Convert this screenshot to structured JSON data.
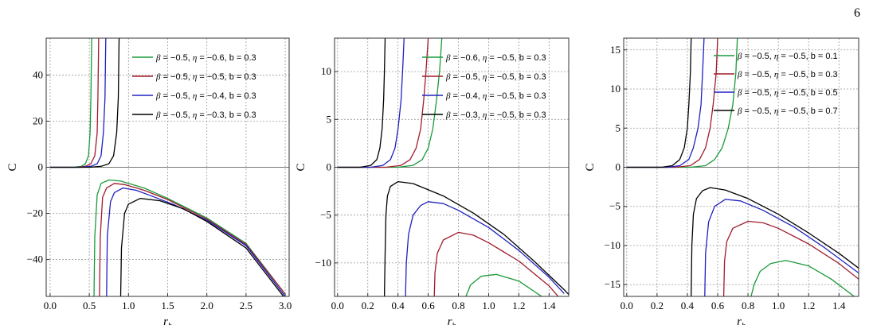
{
  "page_number": "6",
  "chart_data": [
    {
      "type": "line",
      "xlabel": "r_h",
      "ylabel": "C",
      "xlim": [
        -0.05,
        3.05
      ],
      "ylim": [
        -56,
        56
      ],
      "xticks": [
        0.0,
        0.5,
        1.0,
        1.5,
        2.0,
        2.5,
        3.0
      ],
      "xtick_labels": [
        "0.0",
        "0.5",
        "1.0",
        "1.5",
        "2.0",
        "2.5",
        "3.0"
      ],
      "yticks": [
        -40,
        -20,
        0,
        20,
        40
      ],
      "ytick_labels": [
        "−40",
        "−20",
        "0",
        "20",
        "40"
      ],
      "grid": true,
      "legend_position": "top-right",
      "series": [
        {
          "name": "β = −0.5, η = −0.6, b = 0.3",
          "color": "#1a9a3a",
          "upper": [
            [
              0,
              0
            ],
            [
              0.3,
              0
            ],
            [
              0.4,
              0.4
            ],
            [
              0.45,
              1.5
            ],
            [
              0.49,
              5
            ],
            [
              0.51,
              15
            ],
            [
              0.52,
              30
            ],
            [
              0.53,
              56
            ]
          ],
          "lower": [
            [
              0.56,
              -56
            ],
            [
              0.57,
              -30
            ],
            [
              0.6,
              -12
            ],
            [
              0.65,
              -7
            ],
            [
              0.75,
              -5.5
            ],
            [
              0.9,
              -6
            ],
            [
              1.2,
              -9
            ],
            [
              1.5,
              -13.5
            ],
            [
              2.0,
              -22
            ],
            [
              2.5,
              -33
            ],
            [
              3.0,
              -55
            ]
          ]
        },
        {
          "name": "β = −0.5, η = −0.5, b = 0.3",
          "color": "#a01c2c",
          "upper": [
            [
              0,
              0
            ],
            [
              0.35,
              0
            ],
            [
              0.45,
              0.4
            ],
            [
              0.52,
              1.5
            ],
            [
              0.57,
              5
            ],
            [
              0.6,
              15
            ],
            [
              0.61,
              30
            ],
            [
              0.62,
              56
            ]
          ],
          "lower": [
            [
              0.63,
              -56
            ],
            [
              0.64,
              -30
            ],
            [
              0.67,
              -13
            ],
            [
              0.72,
              -9
            ],
            [
              0.82,
              -7
            ],
            [
              0.95,
              -7.5
            ],
            [
              1.2,
              -10
            ],
            [
              1.5,
              -14
            ],
            [
              2.0,
              -22.5
            ],
            [
              2.5,
              -33.5
            ],
            [
              3.0,
              -55
            ]
          ]
        },
        {
          "name": "β = −0.5, η = −0.4, b = 0.3",
          "color": "#2020c0",
          "upper": [
            [
              0,
              0
            ],
            [
              0.4,
              0
            ],
            [
              0.52,
              0.4
            ],
            [
              0.6,
              1.5
            ],
            [
              0.65,
              5
            ],
            [
              0.68,
              15
            ],
            [
              0.7,
              30
            ],
            [
              0.71,
              56
            ]
          ],
          "lower": [
            [
              0.72,
              -56
            ],
            [
              0.73,
              -30
            ],
            [
              0.77,
              -15
            ],
            [
              0.82,
              -11
            ],
            [
              0.93,
              -9
            ],
            [
              1.1,
              -10
            ],
            [
              1.3,
              -12.5
            ],
            [
              1.6,
              -16.5
            ],
            [
              2.0,
              -23
            ],
            [
              2.5,
              -34
            ],
            [
              3.0,
              -56
            ]
          ]
        },
        {
          "name": "β = −0.5, η = −0.3, b = 0.3",
          "color": "#000000",
          "upper": [
            [
              0,
              0
            ],
            [
              0.5,
              0
            ],
            [
              0.65,
              0.4
            ],
            [
              0.75,
              1.5
            ],
            [
              0.81,
              5
            ],
            [
              0.85,
              15
            ],
            [
              0.87,
              30
            ],
            [
              0.88,
              56
            ]
          ],
          "lower": [
            [
              0.9,
              -56
            ],
            [
              0.91,
              -35
            ],
            [
              0.95,
              -20
            ],
            [
              1.0,
              -16
            ],
            [
              1.15,
              -13.5
            ],
            [
              1.4,
              -14.5
            ],
            [
              1.7,
              -18
            ],
            [
              2.0,
              -23.5
            ],
            [
              2.5,
              -35
            ],
            [
              3.0,
              -57
            ]
          ]
        }
      ]
    },
    {
      "type": "line",
      "xlabel": "r_h",
      "ylabel": "C",
      "xlim": [
        -0.02,
        1.53
      ],
      "ylim": [
        -13.5,
        13.5
      ],
      "xticks": [
        0.0,
        0.2,
        0.4,
        0.6,
        0.8,
        1.0,
        1.2,
        1.4
      ],
      "xtick_labels": [
        "0.0",
        "0.2",
        "0.4",
        "0.6",
        "0.8",
        "1.0",
        "1.2",
        "1.4"
      ],
      "yticks": [
        -10,
        -5,
        0,
        5,
        10
      ],
      "ytick_labels": [
        "−10",
        "−5",
        "0",
        "5",
        "10"
      ],
      "grid": true,
      "legend_position": "top-right",
      "series": [
        {
          "name": "β = −0.6, η = −0.5, b = 0.3",
          "color": "#1a9a3a",
          "upper": [
            [
              0,
              0
            ],
            [
              0.4,
              0
            ],
            [
              0.5,
              0.2
            ],
            [
              0.56,
              0.8
            ],
            [
              0.6,
              2
            ],
            [
              0.63,
              4
            ],
            [
              0.655,
              7
            ],
            [
              0.675,
              10
            ],
            [
              0.69,
              13.5
            ]
          ],
          "lower": [
            [
              0.85,
              -13.5
            ],
            [
              0.88,
              -12.3
            ],
            [
              0.95,
              -11.4
            ],
            [
              1.05,
              -11.2
            ],
            [
              1.2,
              -11.9
            ],
            [
              1.35,
              -13.5
            ]
          ]
        },
        {
          "name": "β = −0.5, η = −0.5, b = 0.3",
          "color": "#a01c2c",
          "upper": [
            [
              0,
              0
            ],
            [
              0.32,
              0
            ],
            [
              0.42,
              0.2
            ],
            [
              0.48,
              0.8
            ],
            [
              0.52,
              2
            ],
            [
              0.55,
              4
            ],
            [
              0.57,
              7
            ],
            [
              0.585,
              10
            ],
            [
              0.6,
              13.5
            ]
          ],
          "lower": [
            [
              0.64,
              -13.5
            ],
            [
              0.645,
              -11
            ],
            [
              0.66,
              -9
            ],
            [
              0.7,
              -7.6
            ],
            [
              0.8,
              -6.8
            ],
            [
              0.9,
              -7.1
            ],
            [
              1.0,
              -7.9
            ],
            [
              1.2,
              -9.8
            ],
            [
              1.4,
              -12.4
            ],
            [
              1.46,
              -13.5
            ]
          ]
        },
        {
          "name": "β = −0.4, η = −0.5, b = 0.3",
          "color": "#2020c0",
          "upper": [
            [
              0,
              0
            ],
            [
              0.22,
              0
            ],
            [
              0.3,
              0.2
            ],
            [
              0.35,
              0.8
            ],
            [
              0.38,
              2
            ],
            [
              0.4,
              4
            ],
            [
              0.42,
              7
            ],
            [
              0.43,
              10
            ],
            [
              0.44,
              13.5
            ]
          ],
          "lower": [
            [
              0.45,
              -13.5
            ],
            [
              0.455,
              -10
            ],
            [
              0.47,
              -7
            ],
            [
              0.5,
              -5
            ],
            [
              0.55,
              -4
            ],
            [
              0.6,
              -3.6
            ],
            [
              0.7,
              -3.8
            ],
            [
              0.8,
              -4.5
            ],
            [
              1.0,
              -6.3
            ],
            [
              1.2,
              -8.7
            ],
            [
              1.4,
              -11.5
            ],
            [
              1.5,
              -13.2
            ]
          ]
        },
        {
          "name": "β = −0.3, η = −0.5, b = 0.3",
          "color": "#000000",
          "upper": [
            [
              0,
              0
            ],
            [
              0.15,
              0
            ],
            [
              0.22,
              0.2
            ],
            [
              0.26,
              0.8
            ],
            [
              0.28,
              2
            ],
            [
              0.295,
              4
            ],
            [
              0.305,
              7
            ],
            [
              0.31,
              10
            ],
            [
              0.315,
              13.5
            ]
          ],
          "lower": [
            [
              0.31,
              -13.5
            ],
            [
              0.315,
              -9
            ],
            [
              0.32,
              -5
            ],
            [
              0.33,
              -3
            ],
            [
              0.35,
              -2
            ],
            [
              0.4,
              -1.5
            ],
            [
              0.5,
              -1.7
            ],
            [
              0.7,
              -3
            ],
            [
              0.9,
              -4.8
            ],
            [
              1.1,
              -7
            ],
            [
              1.3,
              -9.8
            ],
            [
              1.5,
              -12.8
            ],
            [
              1.53,
              -13.3
            ]
          ]
        }
      ]
    },
    {
      "type": "line",
      "xlabel": "r_h",
      "ylabel": "C",
      "xlim": [
        -0.02,
        1.53
      ],
      "ylim": [
        -16.5,
        16.5
      ],
      "xticks": [
        0.0,
        0.2,
        0.4,
        0.6,
        0.8,
        1.0,
        1.2,
        1.4
      ],
      "xtick_labels": [
        "0.0",
        "0.2",
        "0.4",
        "0.6",
        "0.8",
        "1.0",
        "1.2",
        "1.4"
      ],
      "yticks": [
        -15,
        -10,
        -5,
        0,
        5,
        10,
        15
      ],
      "ytick_labels": [
        "−15",
        "−10",
        "−5",
        "0",
        "5",
        "10",
        "15"
      ],
      "grid": true,
      "legend_position": "top-right",
      "series": [
        {
          "name": "β = −0.5, η = −0.5, b = 0.1",
          "color": "#1a9a3a",
          "upper": [
            [
              0,
              0
            ],
            [
              0.42,
              0
            ],
            [
              0.52,
              0.2
            ],
            [
              0.58,
              1
            ],
            [
              0.63,
              2.5
            ],
            [
              0.67,
              5
            ],
            [
              0.7,
              8
            ],
            [
              0.72,
              12
            ],
            [
              0.73,
              16.5
            ]
          ],
          "lower": [
            [
              0.82,
              -16.5
            ],
            [
              0.84,
              -15
            ],
            [
              0.88,
              -13.3
            ],
            [
              0.95,
              -12.3
            ],
            [
              1.05,
              -11.9
            ],
            [
              1.2,
              -12.6
            ],
            [
              1.35,
              -14.3
            ],
            [
              1.5,
              -16.5
            ]
          ]
        },
        {
          "name": "β = −0.5, η = −0.5, b = 0.3",
          "color": "#a01c2c",
          "upper": [
            [
              0,
              0
            ],
            [
              0.32,
              0
            ],
            [
              0.42,
              0.2
            ],
            [
              0.48,
              1
            ],
            [
              0.52,
              2.5
            ],
            [
              0.55,
              5
            ],
            [
              0.57,
              8
            ],
            [
              0.59,
              12
            ],
            [
              0.6,
              16.5
            ]
          ],
          "lower": [
            [
              0.64,
              -16.5
            ],
            [
              0.645,
              -12
            ],
            [
              0.66,
              -9.5
            ],
            [
              0.7,
              -7.8
            ],
            [
              0.8,
              -6.9
            ],
            [
              0.9,
              -7.1
            ],
            [
              1.0,
              -7.8
            ],
            [
              1.2,
              -9.8
            ],
            [
              1.4,
              -12.3
            ],
            [
              1.53,
              -14.3
            ]
          ]
        },
        {
          "name": "β = −0.5, η = −0.5, b = 0.5",
          "color": "#2020c0",
          "upper": [
            [
              0,
              0
            ],
            [
              0.27,
              0
            ],
            [
              0.35,
              0.2
            ],
            [
              0.41,
              1
            ],
            [
              0.44,
              2.5
            ],
            [
              0.47,
              5
            ],
            [
              0.49,
              8
            ],
            [
              0.5,
              12
            ],
            [
              0.51,
              16.5
            ]
          ],
          "lower": [
            [
              0.515,
              -16.5
            ],
            [
              0.52,
              -11
            ],
            [
              0.54,
              -7
            ],
            [
              0.58,
              -5
            ],
            [
              0.65,
              -4.1
            ],
            [
              0.75,
              -4.3
            ],
            [
              0.9,
              -5.5
            ],
            [
              1.1,
              -7.6
            ],
            [
              1.3,
              -10.2
            ],
            [
              1.53,
              -13.5
            ]
          ]
        },
        {
          "name": "β = −0.5, η = −0.5, b = 0.7",
          "color": "#000000",
          "upper": [
            [
              0,
              0
            ],
            [
              0.23,
              0
            ],
            [
              0.3,
              0.2
            ],
            [
              0.35,
              1
            ],
            [
              0.38,
              2.5
            ],
            [
              0.4,
              5
            ],
            [
              0.41,
              8
            ],
            [
              0.42,
              12
            ],
            [
              0.425,
              16.5
            ]
          ],
          "lower": [
            [
              0.425,
              -16.5
            ],
            [
              0.43,
              -10
            ],
            [
              0.44,
              -6
            ],
            [
              0.46,
              -4
            ],
            [
              0.5,
              -3
            ],
            [
              0.55,
              -2.6
            ],
            [
              0.65,
              -2.9
            ],
            [
              0.8,
              -4
            ],
            [
              1.0,
              -6
            ],
            [
              1.2,
              -8.4
            ],
            [
              1.4,
              -11
            ],
            [
              1.53,
              -12.9
            ]
          ]
        }
      ]
    }
  ]
}
